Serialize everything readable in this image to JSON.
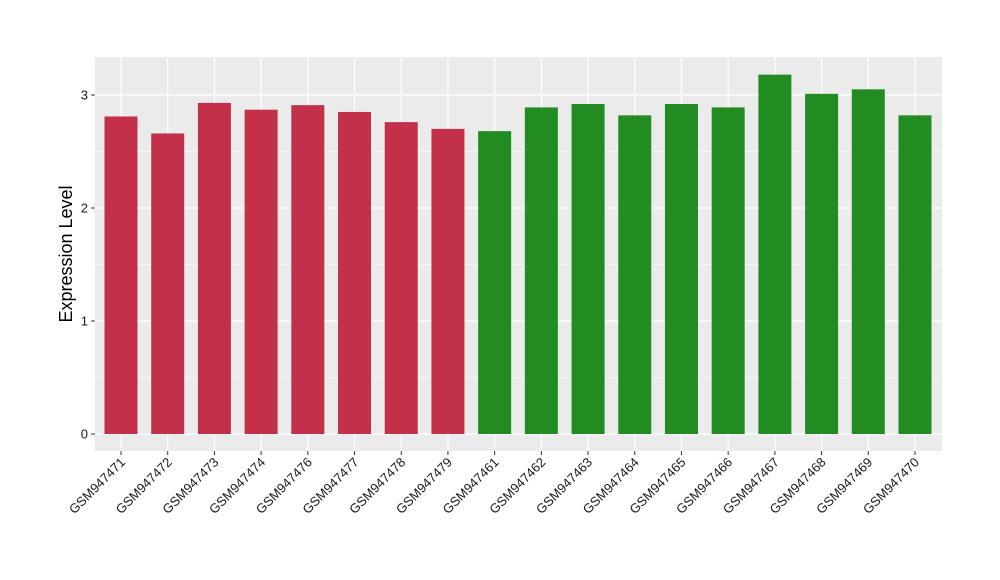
{
  "chart_data": {
    "type": "bar",
    "title": "",
    "xlabel": "",
    "ylabel": "Expression Level",
    "ylim": [
      -0.15,
      3.3
    ],
    "yticks": [
      0,
      1,
      2,
      3
    ],
    "grid": true,
    "legend": "none",
    "categories": [
      "GSM947471",
      "GSM947472",
      "GSM947473",
      "GSM947474",
      "GSM947476",
      "GSM947477",
      "GSM947478",
      "GSM947479",
      "GSM947461",
      "GSM947462",
      "GSM947463",
      "GSM947464",
      "GSM947465",
      "GSM947466",
      "GSM947467",
      "GSM947468",
      "GSM947469",
      "GSM947470"
    ],
    "values": [
      2.81,
      2.66,
      2.93,
      2.87,
      2.91,
      2.85,
      2.76,
      2.7,
      2.68,
      2.89,
      2.92,
      2.82,
      2.92,
      2.89,
      3.18,
      3.01,
      3.05,
      2.82
    ],
    "groups": [
      "red",
      "red",
      "red",
      "red",
      "red",
      "red",
      "red",
      "red",
      "green",
      "green",
      "green",
      "green",
      "green",
      "green",
      "green",
      "green",
      "green",
      "green"
    ],
    "colors": {
      "red": "#C3304A",
      "green": "#228B22",
      "panel": "#EBEBEB",
      "grid": "#FFFFFF"
    }
  }
}
